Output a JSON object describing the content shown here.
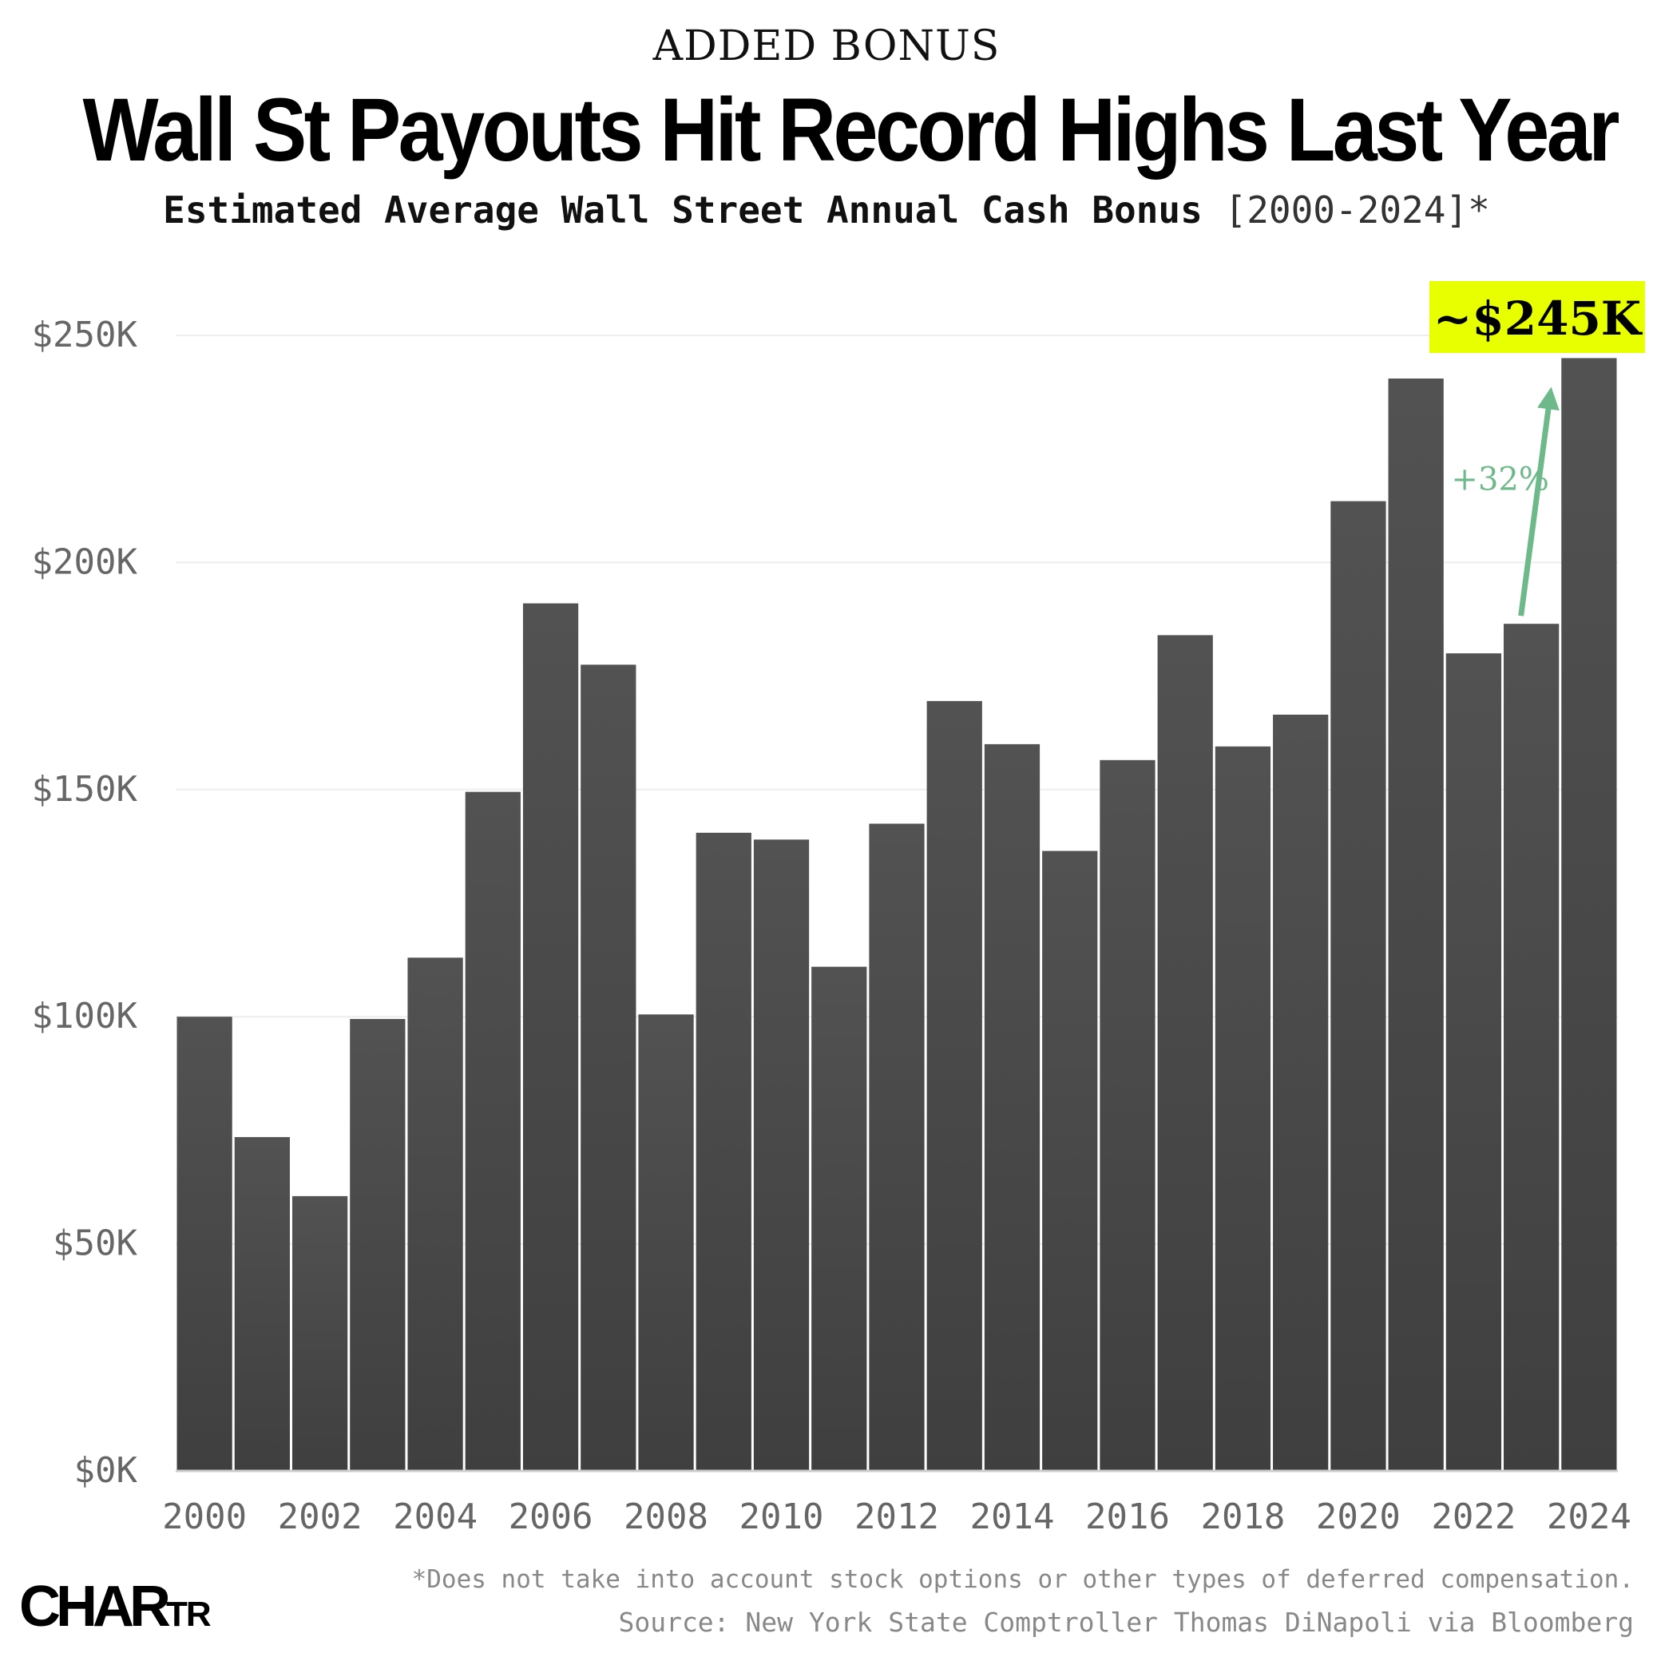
{
  "header": {
    "kicker": "ADDED BONUS",
    "title": "Wall St Payouts Hit Record Highs Last Year",
    "subtitle_bold": "Estimated Average Wall Street Annual Cash Bonus",
    "subtitle_range": "[2000-2024]*"
  },
  "chart_data": {
    "type": "bar",
    "categories": [
      "2000",
      "2001",
      "2002",
      "2003",
      "2004",
      "2005",
      "2006",
      "2007",
      "2008",
      "2009",
      "2010",
      "2011",
      "2012",
      "2013",
      "2014",
      "2015",
      "2016",
      "2017",
      "2018",
      "2019",
      "2020",
      "2021",
      "2022",
      "2023",
      "2024"
    ],
    "values": [
      100000,
      73500,
      60500,
      99500,
      113000,
      149500,
      191000,
      177500,
      100500,
      140500,
      139000,
      111000,
      142500,
      169500,
      160000,
      136500,
      156500,
      184000,
      159500,
      166500,
      213500,
      240500,
      180000,
      186500,
      245000
    ],
    "x_tick_labels": [
      "2000",
      "2002",
      "2004",
      "2006",
      "2008",
      "2010",
      "2012",
      "2014",
      "2016",
      "2018",
      "2020",
      "2022",
      "2024"
    ],
    "y_ticks": [
      0,
      50000,
      100000,
      150000,
      200000,
      250000
    ],
    "y_tick_labels": [
      "$0K",
      "$50K",
      "$100K",
      "$150K",
      "$200K",
      "$250K"
    ],
    "ylim": [
      0,
      250000
    ],
    "grid": true,
    "bar_color": "#4a4a4a",
    "highlight_label": "~$245K",
    "highlight_color": "#e8ff00",
    "change_label": "+32%",
    "change_color": "#6db98a"
  },
  "footer": {
    "footnote": "*Does not take into account stock options or other types of deferred compensation.",
    "source": "Source: New York State Comptroller Thomas DiNapoli via Bloomberg",
    "logo_main": "CHAR",
    "logo_small": "TR"
  }
}
